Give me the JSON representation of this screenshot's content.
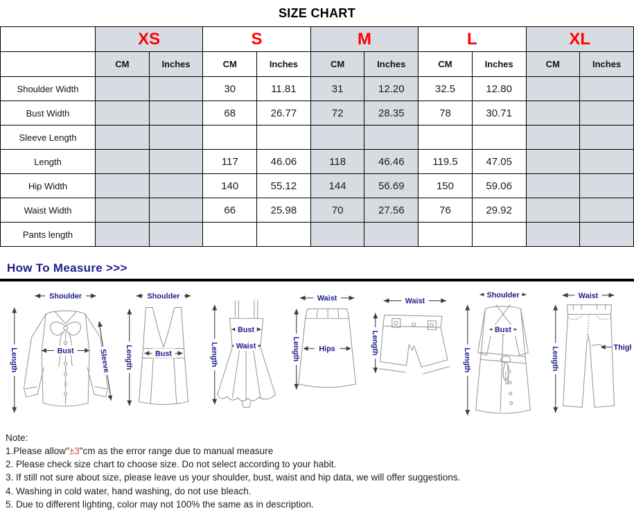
{
  "colors": {
    "size_red": "#ff0000",
    "navy": "#1c1c8c",
    "shaded": "#d7dce3",
    "note_red": "#e8473f"
  },
  "table": {
    "title": "SIZE CHART",
    "sizes": [
      {
        "label": "XS",
        "shaded": true
      },
      {
        "label": "S",
        "shaded": false
      },
      {
        "label": "M",
        "shaded": true
      },
      {
        "label": "L",
        "shaded": false
      },
      {
        "label": "XL",
        "shaded": true
      }
    ],
    "unit_headers": [
      "CM",
      "Inches"
    ],
    "rows": [
      {
        "label": "Shoulder Width",
        "values": [
          "",
          "",
          "30",
          "11.81",
          "31",
          "12.20",
          "32.5",
          "12.80",
          "",
          ""
        ]
      },
      {
        "label": "Bust Width",
        "values": [
          "",
          "",
          "68",
          "26.77",
          "72",
          "28.35",
          "78",
          "30.71",
          "",
          ""
        ]
      },
      {
        "label": "Sleeve Length",
        "values": [
          "",
          "",
          "",
          "",
          "",
          "",
          "",
          "",
          "",
          ""
        ]
      },
      {
        "label": "Length",
        "values": [
          "",
          "",
          "117",
          "46.06",
          "118",
          "46.46",
          "119.5",
          "47.05",
          "",
          ""
        ]
      },
      {
        "label": "Hip Width",
        "values": [
          "",
          "",
          "140",
          "55.12",
          "144",
          "56.69",
          "150",
          "59.06",
          "",
          ""
        ]
      },
      {
        "label": "Waist Width",
        "values": [
          "",
          "",
          "66",
          "25.98",
          "70",
          "27.56",
          "76",
          "29.92",
          "",
          ""
        ]
      },
      {
        "label": "Pants length",
        "values": [
          "",
          "",
          "",
          "",
          "",
          "",
          "",
          "",
          "",
          ""
        ]
      }
    ]
  },
  "measure": {
    "heading": "How To Measure >>>",
    "figures": [
      {
        "name": "blouse",
        "labels": {
          "top": "Shoulder",
          "left": "Length",
          "mid": "Bust",
          "right": "Sleeve"
        }
      },
      {
        "name": "tank-top",
        "labels": {
          "top": "Shoulder",
          "left": "Length",
          "mid": "Bust"
        }
      },
      {
        "name": "cami-dress",
        "labels": {
          "left": "Length",
          "mid": "Bust",
          "mid2": "Waist"
        }
      },
      {
        "name": "skirt",
        "labels": {
          "top": "Waist",
          "left": "Length",
          "mid": "Hips"
        }
      },
      {
        "name": "shorts",
        "labels": {
          "top": "Waist",
          "left": "Length"
        }
      },
      {
        "name": "trench-coat",
        "labels": {
          "top": "Shoulder",
          "left": "Length",
          "mid": "Bust"
        }
      },
      {
        "name": "pants",
        "labels": {
          "top": "Waist",
          "left": "Length",
          "right": "Thigh"
        }
      }
    ]
  },
  "notes": {
    "heading": "Note:",
    "items": [
      [
        {
          "t": "1.Please allow\""
        },
        {
          "t": "±3",
          "red": true
        },
        {
          "t": "\"cm as the error range due to manual measure"
        }
      ],
      [
        {
          "t": "2. Please check size chart to choose size. Do not select according to your habit."
        }
      ],
      [
        {
          "t": "3. If still not sure about size, please leave us your shoulder, bust, waist and hip data, we will offer suggestions."
        }
      ],
      [
        {
          "t": "4. Washing in cold water, hand washing, do not use bleach."
        }
      ],
      [
        {
          "t": "5. Due to different lighting, color may not 100% the same as in description."
        }
      ]
    ]
  }
}
